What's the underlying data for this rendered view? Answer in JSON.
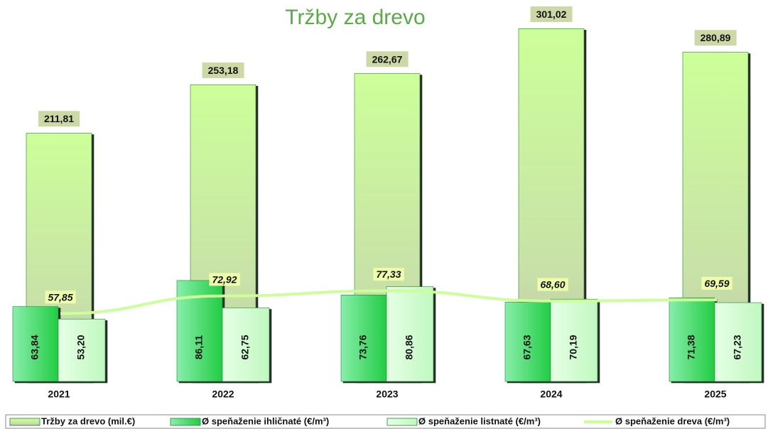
{
  "chart_data": {
    "type": "bar",
    "title": "Tržby za drevo",
    "categories": [
      "2021",
      "2022",
      "2023",
      "2024",
      "2025"
    ],
    "ylim": [
      0,
      320
    ],
    "series": [
      {
        "name": "Tržby za drevo (mil.€)",
        "color": "#ccff99",
        "values": [
          211.81,
          253.18,
          262.67,
          301.02,
          280.89
        ],
        "value_labels": [
          "211,81",
          "253,18",
          "262,67",
          "301,02",
          "280,89"
        ]
      },
      {
        "name": "Ø speňaženie ihličnaté (€/m³)",
        "color": "#33dd66",
        "values": [
          63.84,
          86.11,
          73.76,
          67.63,
          71.38
        ],
        "value_labels": [
          "63,84",
          "86,11",
          "73,76",
          "67,63",
          "71,38"
        ]
      },
      {
        "name": "Ø speňaženie listnaté (€/m³)",
        "color": "#ccffcc",
        "values": [
          53.2,
          62.75,
          80.86,
          70.19,
          67.23
        ],
        "value_labels": [
          "53,20",
          "62,75",
          "80,86",
          "70,19",
          "67,23"
        ]
      },
      {
        "name": "Ø speňaženie dreva (€/m³)",
        "type": "line",
        "color": "#ccff99",
        "values": [
          57.85,
          72.92,
          77.33,
          68.6,
          69.59
        ],
        "value_labels": [
          "57,85",
          "72,92",
          "77,33",
          "68,60",
          "69,59"
        ]
      }
    ]
  }
}
